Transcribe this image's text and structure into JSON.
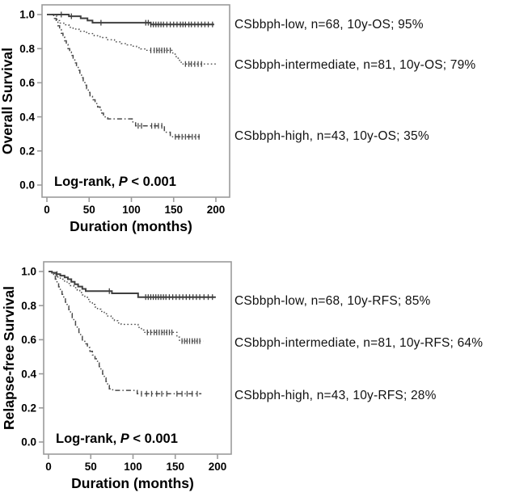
{
  "colors": {
    "curve_solid": "#3f3f3f",
    "curve_broken": "#4a4a4a",
    "frame": "#9b9b9b",
    "text": "#000000"
  },
  "chart_data": [
    {
      "type": "line",
      "subtype": "kaplan-meier-step",
      "title": "",
      "xlabel": "Duration (months)",
      "ylabel": "Overall Survival",
      "xlim": [
        0,
        200
      ],
      "ylim": [
        0.0,
        1.0
      ],
      "grid": false,
      "legend_position": "right-outside",
      "x_tick_labels": [
        "0",
        "50",
        "100",
        "150",
        "200"
      ],
      "x_tick_values": [
        0,
        50,
        100,
        150,
        200
      ],
      "y_tick_labels": [
        "1.0",
        "0.8",
        "0.6",
        "0.4",
        "0.2",
        "0.0"
      ],
      "y_tick_values": [
        1.0,
        0.8,
        0.6,
        0.4,
        0.2,
        0.0
      ],
      "annotation": {
        "prefix": "Log-rank, ",
        "italic": "P",
        "suffix": " < 0.001"
      },
      "series": [
        {
          "name": "CSbbph-low",
          "label": "CSbbph-low, n=68, 10y-OS; 95%",
          "n": 68,
          "ten_year_value": 0.95,
          "line_style": "solid",
          "end": 198,
          "points": [
            [
              0,
              1.0
            ],
            [
              26,
              0.99
            ],
            [
              40,
              0.978
            ],
            [
              48,
              0.965
            ],
            [
              54,
              0.952
            ],
            [
              123,
              0.942
            ]
          ],
          "censors": [
            17,
            29,
            64,
            117,
            120,
            123,
            126,
            129,
            132,
            135,
            138,
            142,
            146,
            150,
            154,
            158,
            161,
            164,
            168,
            171,
            175,
            179,
            183,
            187,
            191,
            196
          ]
        },
        {
          "name": "CSbbph-intermediate",
          "label": "CSbbph-intermediate, n=81, 10y-OS; 79%",
          "n": 81,
          "ten_year_value": 0.79,
          "line_style": "dotted",
          "end": 200,
          "points": [
            [
              0,
              1.0
            ],
            [
              8,
              0.99
            ],
            [
              12,
              0.965
            ],
            [
              15,
              0.95
            ],
            [
              20,
              0.94
            ],
            [
              26,
              0.925
            ],
            [
              31,
              0.915
            ],
            [
              38,
              0.902
            ],
            [
              47,
              0.888
            ],
            [
              56,
              0.876
            ],
            [
              63,
              0.865
            ],
            [
              72,
              0.852
            ],
            [
              80,
              0.84
            ],
            [
              88,
              0.83
            ],
            [
              95,
              0.822
            ],
            [
              101,
              0.814
            ],
            [
              106,
              0.806
            ],
            [
              111,
              0.798
            ],
            [
              116,
              0.79
            ],
            [
              149,
              0.768
            ],
            [
              153,
              0.744
            ],
            [
              157,
              0.72
            ],
            [
              160,
              0.71
            ]
          ],
          "censors": [
            123,
            127,
            130,
            133,
            136,
            139,
            142,
            146,
            164,
            168,
            171,
            175,
            179,
            183
          ]
        },
        {
          "name": "CSbbph-high",
          "label": "CSbbph-high, n=43, 10y-OS; 35%",
          "n": 43,
          "ten_year_value": 0.35,
          "line_style": "dashdot",
          "end": 181,
          "points": [
            [
              0,
              1.0
            ],
            [
              9,
              0.977
            ],
            [
              11,
              0.955
            ],
            [
              13,
              0.934
            ],
            [
              15,
              0.912
            ],
            [
              17,
              0.89
            ],
            [
              19,
              0.868
            ],
            [
              21,
              0.846
            ],
            [
              23,
              0.824
            ],
            [
              25,
              0.8
            ],
            [
              27,
              0.78
            ],
            [
              29,
              0.76
            ],
            [
              31,
              0.738
            ],
            [
              33,
              0.716
            ],
            [
              35,
              0.695
            ],
            [
              37,
              0.673
            ],
            [
              39,
              0.65
            ],
            [
              41,
              0.63
            ],
            [
              43,
              0.608
            ],
            [
              45,
              0.586
            ],
            [
              47,
              0.565
            ],
            [
              49,
              0.543
            ],
            [
              51,
              0.52
            ],
            [
              54,
              0.5
            ],
            [
              57,
              0.478
            ],
            [
              60,
              0.458
            ],
            [
              63,
              0.44
            ],
            [
              65,
              0.422
            ],
            [
              67,
              0.406
            ],
            [
              69,
              0.395
            ],
            [
              72,
              0.388
            ],
            [
              101,
              0.37
            ],
            [
              105,
              0.347
            ],
            [
              139,
              0.31
            ],
            [
              146,
              0.283
            ]
          ],
          "censors": [
            108,
            112,
            124,
            128,
            132,
            136,
            152,
            156,
            160,
            164,
            168,
            172,
            176,
            180
          ]
        }
      ]
    },
    {
      "type": "line",
      "subtype": "kaplan-meier-step",
      "title": "",
      "xlabel": "Duration (months)",
      "ylabel": "Relapse-free Survival",
      "xlim": [
        0,
        200
      ],
      "ylim": [
        0.0,
        1.0
      ],
      "grid": false,
      "legend_position": "right-outside",
      "x_tick_labels": [
        "0",
        "50",
        "100",
        "150",
        "200"
      ],
      "x_tick_values": [
        0,
        50,
        100,
        150,
        200
      ],
      "y_tick_labels": [
        "1.0",
        "0.8",
        "0.6",
        "0.4",
        "0.2",
        "0.0"
      ],
      "y_tick_values": [
        1.0,
        0.8,
        0.6,
        0.4,
        0.2,
        0.0
      ],
      "annotation": {
        "prefix": "Log-rank, ",
        "italic": "P",
        "suffix": " < 0.001"
      },
      "series": [
        {
          "name": "CSbbph-low",
          "label": "CSbbph-low, n=68, 10y-RFS; 85%",
          "n": 68,
          "ten_year_value": 0.85,
          "line_style": "solid",
          "end": 198,
          "points": [
            [
              0,
              1.0
            ],
            [
              4,
              0.993
            ],
            [
              9,
              0.985
            ],
            [
              14,
              0.976
            ],
            [
              19,
              0.966
            ],
            [
              23,
              0.955
            ],
            [
              27,
              0.94
            ],
            [
              31,
              0.925
            ],
            [
              35,
              0.912
            ],
            [
              40,
              0.898
            ],
            [
              44,
              0.885
            ],
            [
              75,
              0.872
            ],
            [
              106,
              0.85
            ]
          ],
          "censors": [
            10,
            72,
            115,
            118,
            121,
            124,
            127,
            130,
            133,
            136,
            139,
            143,
            147,
            151,
            155,
            159,
            163,
            167,
            171,
            175,
            179,
            184,
            189,
            194
          ]
        },
        {
          "name": "CSbbph-intermediate",
          "label": "CSbbph-intermediate, n=81, 10y-RFS; 64%",
          "n": 81,
          "ten_year_value": 0.64,
          "line_style": "dotted",
          "end": 183,
          "points": [
            [
              0,
              1.0
            ],
            [
              4,
              0.99
            ],
            [
              7,
              0.98
            ],
            [
              10,
              0.968
            ],
            [
              14,
              0.955
            ],
            [
              18,
              0.944
            ],
            [
              22,
              0.93
            ],
            [
              26,
              0.917
            ],
            [
              30,
              0.905
            ],
            [
              34,
              0.89
            ],
            [
              37,
              0.877
            ],
            [
              40,
              0.863
            ],
            [
              43,
              0.85
            ],
            [
              46,
              0.836
            ],
            [
              49,
              0.822
            ],
            [
              52,
              0.807
            ],
            [
              55,
              0.792
            ],
            [
              58,
              0.779
            ],
            [
              62,
              0.766
            ],
            [
              66,
              0.752
            ],
            [
              70,
              0.739
            ],
            [
              74,
              0.726
            ],
            [
              78,
              0.712
            ],
            [
              82,
              0.698
            ],
            [
              86,
              0.69
            ],
            [
              106,
              0.672
            ],
            [
              110,
              0.657
            ],
            [
              113,
              0.643
            ],
            [
              152,
              0.615
            ],
            [
              155,
              0.592
            ]
          ],
          "censors": [
            117,
            121,
            125,
            128,
            131,
            134,
            137,
            140,
            143,
            146,
            158,
            161,
            164,
            167,
            170,
            173,
            176,
            179
          ]
        },
        {
          "name": "CSbbph-high",
          "label": "CSbbph-high, n=43, 10y-RFS; 28%",
          "n": 43,
          "ten_year_value": 0.28,
          "line_style": "dashdot",
          "end": 181,
          "points": [
            [
              0,
              1.0
            ],
            [
              4,
              0.99
            ],
            [
              6,
              0.977
            ],
            [
              8,
              0.955
            ],
            [
              10,
              0.932
            ],
            [
              12,
              0.91
            ],
            [
              14,
              0.888
            ],
            [
              16,
              0.866
            ],
            [
              18,
              0.843
            ],
            [
              20,
              0.82
            ],
            [
              22,
              0.798
            ],
            [
              24,
              0.776
            ],
            [
              26,
              0.754
            ],
            [
              28,
              0.73
            ],
            [
              30,
              0.708
            ],
            [
              32,
              0.686
            ],
            [
              34,
              0.664
            ],
            [
              36,
              0.642
            ],
            [
              38,
              0.62
            ],
            [
              40,
              0.598
            ],
            [
              43,
              0.576
            ],
            [
              46,
              0.554
            ],
            [
              49,
              0.532
            ],
            [
              52,
              0.51
            ],
            [
              55,
              0.488
            ],
            [
              58,
              0.464
            ],
            [
              60,
              0.442
            ],
            [
              62,
              0.42
            ],
            [
              64,
              0.398
            ],
            [
              66,
              0.376
            ],
            [
              68,
              0.354
            ],
            [
              70,
              0.332
            ],
            [
              72,
              0.312
            ],
            [
              76,
              0.303
            ],
            [
              105,
              0.283
            ]
          ],
          "censors": [
            110,
            116,
            122,
            128,
            134,
            140,
            152,
            158,
            164,
            170,
            176
          ]
        }
      ]
    }
  ]
}
